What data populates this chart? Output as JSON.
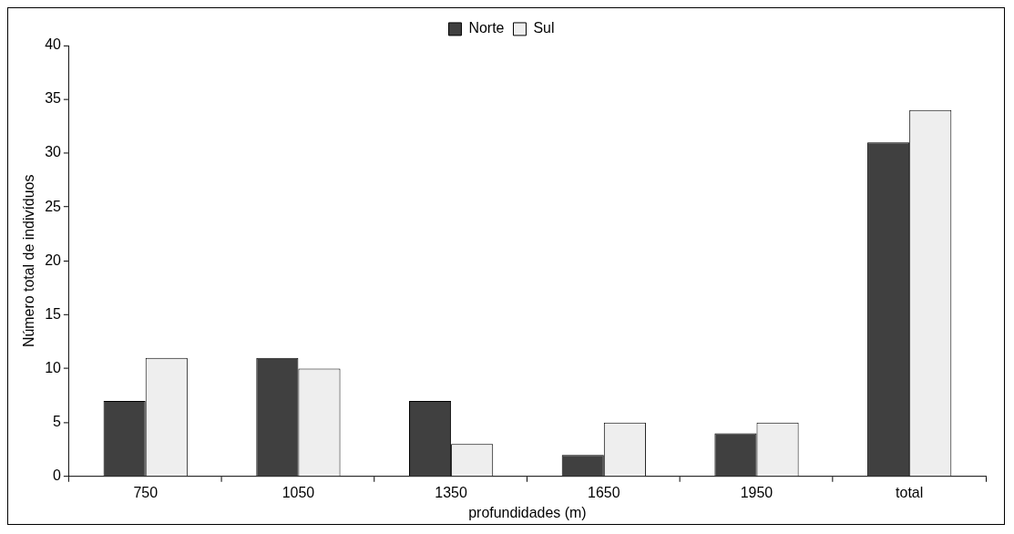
{
  "chart_data": {
    "type": "bar",
    "xlabel": "profundidades (m)",
    "ylabel": "Número total de indivíduos",
    "categories": [
      "750",
      "1050",
      "1350",
      "1650",
      "1950",
      "total"
    ],
    "series": [
      {
        "name": "Norte",
        "color": "#404040",
        "values": [
          7,
          11,
          7,
          2,
          4,
          31
        ]
      },
      {
        "name": "Sul",
        "color": "#eeeeee",
        "values": [
          11,
          10,
          3,
          5,
          5,
          34
        ]
      }
    ],
    "ylim": [
      0,
      40
    ],
    "yticks": [
      0,
      5,
      10,
      15,
      20,
      25,
      30,
      35,
      40
    ],
    "grid": false,
    "legend": "top"
  }
}
